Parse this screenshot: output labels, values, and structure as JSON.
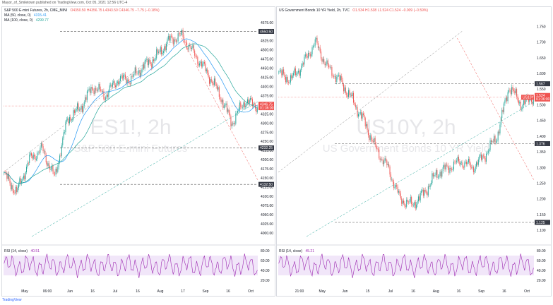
{
  "header": {
    "text": "Mayor_of_Smiletown published on TradingView.com, Oct 05, 2021 12:56 UTC-4"
  },
  "footer": {
    "text": "TradingView"
  },
  "colors": {
    "up": "#26a69a",
    "down": "#ef5350",
    "ma50": "#2196f3",
    "ma100": "#26a69a",
    "rsi": "#9c27b0",
    "rsi_band": "#e8d5f5",
    "last_price": "#ef5350",
    "marker": "#363a45"
  },
  "left": {
    "title": "S&P 500 E-mini Futures, 2h, CME_MINI",
    "ohlc": "O4350.50 H4356.75 L4343.50 C4346.75 −7.75 (−0.18%)",
    "ma50_label": "MA (50, close, 0)",
    "ma50_value": "4315.41",
    "ma100_label": "MA (100, close, 0)",
    "ma100_value": "4299.77",
    "rsi_label": "RSI (14, close)",
    "rsi_value": "40.51",
    "watermark_symbol": "ES1!, 2h",
    "watermark_name": "S&P 500 E-mini Futures",
    "last_price": "4346.75",
    "last_price_time": "01:36:00",
    "marker_labels": [
      "4550.50",
      "4232.25",
      "4132.50"
    ]
  },
  "right": {
    "title": "US Government Bonds 10 YR Yield, 2h, TVC",
    "ohlc": "O1.534 H1.538 L1.524 C1.524 −0.009 (−0.59%)",
    "rsi_label": "RSI (14, close)",
    "rsi_value": "45.21",
    "watermark_symbol": "US10Y, 2h",
    "watermark_name": "US Government Bonds 10 YR Yield",
    "last_price": "1.524",
    "last_price_time": "01:36:00",
    "last_price_tag": "US10Y",
    "marker_labels": [
      "1.567",
      "1.376",
      "1.125"
    ]
  },
  "chart_data": [
    {
      "type": "candlestick",
      "title": "S&P 500 E-mini Futures, 2h, CME_MINI",
      "x_ticks": [
        "May",
        "06:00",
        "Jun",
        "16",
        "Jul",
        "16",
        "Aug",
        "17",
        "Sep",
        "16",
        "Oct"
      ],
      "y_ticks": [
        4575,
        4550,
        4525,
        4500,
        4475,
        4450,
        4425,
        4400,
        4375,
        4350,
        4325,
        4300,
        4275,
        4250,
        4225,
        4200,
        4175,
        4150,
        4125,
        4100,
        4075,
        4050,
        4025,
        4000
      ],
      "ylim": [
        3990,
        4590
      ],
      "series_close": [
        [
          "May",
          4160
        ],
        [
          "06:00",
          4110
        ],
        [
          "Jun",
          4200
        ],
        [
          "16",
          4230
        ],
        [
          "",
          4150
        ],
        [
          "Jul",
          4310
        ],
        [
          "",
          4340
        ],
        [
          "16",
          4400
        ],
        [
          "",
          4375
        ],
        [
          "Aug",
          4420
        ],
        [
          "",
          4420
        ],
        [
          "17",
          4455
        ],
        [
          "",
          4480
        ],
        [
          "Sep",
          4525
        ],
        [
          "",
          4540
        ],
        [
          "",
          4490
        ],
        [
          "16",
          4440
        ],
        [
          "",
          4380
        ],
        [
          "",
          4300
        ],
        [
          "Oct",
          4360
        ],
        [
          "",
          4346.75
        ]
      ],
      "levels": [
        4550.5,
        4232.25,
        4132.5
      ],
      "last": 4346.75,
      "rsi": {
        "range": [
          20,
          80
        ],
        "ticks": [
          80,
          60,
          40,
          20
        ],
        "band": [
          30,
          70
        ],
        "last": 40.51
      }
    },
    {
      "type": "candlestick",
      "title": "US Government Bonds 10 YR Yield, 2h, TVC",
      "x_ticks": [
        "21:00",
        "May",
        "Jun",
        "15",
        "Jul",
        "16",
        "Aug",
        "16",
        "Sep",
        "16",
        "Oct"
      ],
      "y_ticks": [
        1.75,
        1.7,
        1.65,
        1.6,
        1.55,
        1.5,
        1.45,
        1.4,
        1.35,
        1.3,
        1.25,
        1.2,
        1.15,
        1.1
      ],
      "ylim": [
        1.08,
        1.78
      ],
      "series_close": [
        [
          "21:00",
          1.6
        ],
        [
          "",
          1.58
        ],
        [
          "May",
          1.63
        ],
        [
          "",
          1.7
        ],
        [
          "",
          1.62
        ],
        [
          "Jun",
          1.58
        ],
        [
          "15",
          1.52
        ],
        [
          "",
          1.45
        ],
        [
          "Jul",
          1.36
        ],
        [
          "",
          1.3
        ],
        [
          "16",
          1.2
        ],
        [
          "",
          1.18
        ],
        [
          "Aug",
          1.22
        ],
        [
          "",
          1.28
        ],
        [
          "16",
          1.3
        ],
        [
          "",
          1.32
        ],
        [
          "Sep",
          1.3
        ],
        [
          "",
          1.34
        ],
        [
          "16",
          1.4
        ],
        [
          "",
          1.56
        ],
        [
          "Oct",
          1.5
        ],
        [
          "",
          1.524
        ]
      ],
      "levels": [
        1.567,
        1.376,
        1.125
      ],
      "last": 1.524,
      "rsi": {
        "range": [
          20,
          80
        ],
        "ticks": [
          80,
          60,
          40,
          20
        ],
        "band": [
          30,
          70
        ],
        "last": 45.21
      }
    }
  ]
}
